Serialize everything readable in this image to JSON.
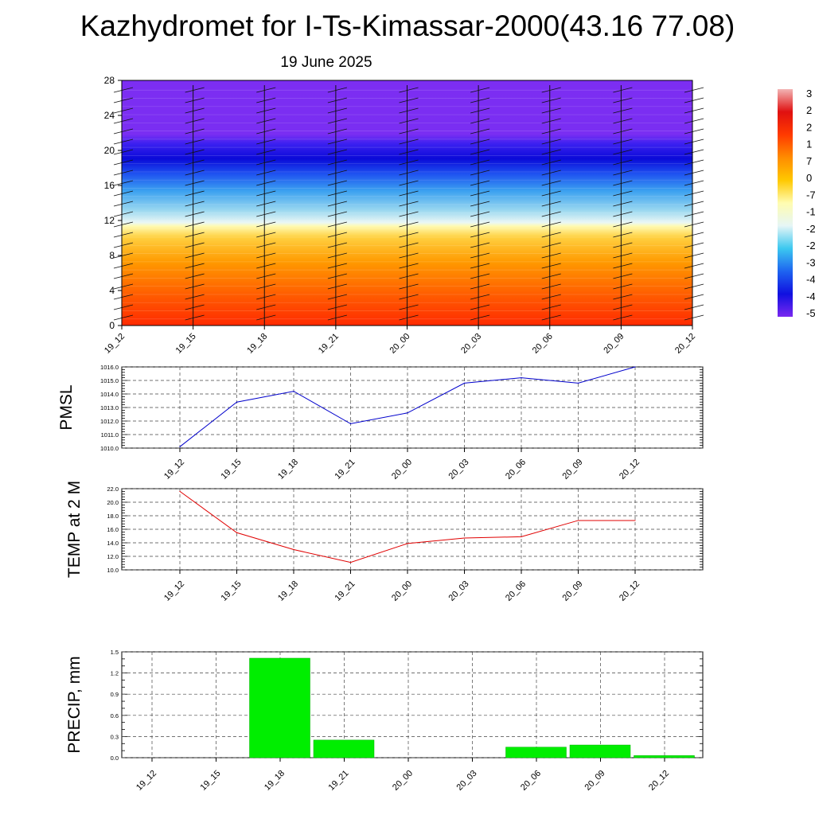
{
  "title": "Kazhydromet for I-Ts-Kimassar-2000(43.16 77.08)",
  "subtitle": "19 June 2025",
  "chart_data": [
    {
      "type": "heatmap",
      "name": "cross-section",
      "x_tick_labels": [
        "19_12",
        "19_15",
        "19_18",
        "19_21",
        "20_00",
        "20_03",
        "20_06",
        "20_09",
        "20_12"
      ],
      "y_ticks": [
        0,
        4,
        8,
        12,
        16,
        20,
        24,
        28
      ],
      "ylim": [
        0,
        28
      ],
      "colorbar_labels": [
        "3",
        "2",
        "2",
        "1",
        "7",
        "0",
        "-7",
        "-1",
        "-2",
        "-2",
        "-3",
        "-4",
        "-4",
        "-5"
      ],
      "color_stops": [
        "#f2b4b4",
        "#e01010",
        "#ff3a00",
        "#ff8c00",
        "#ffc800",
        "#fffcb0",
        "#e6f6f6",
        "#3cc8f0",
        "#1e64f0",
        "#1010e0",
        "#7a28f0"
      ],
      "wind_barbs": true
    },
    {
      "type": "line",
      "name": "pmsl",
      "ylabel": "PMSL",
      "categories": [
        "19_12",
        "19_15",
        "19_18",
        "19_21",
        "20_00",
        "20_03",
        "20_06",
        "20_09",
        "20_12"
      ],
      "values": [
        1010.1,
        1013.4,
        1014.2,
        1011.8,
        1012.6,
        1014.8,
        1015.2,
        1014.8,
        1016.0
      ],
      "y_ticks": [
        "1010.0",
        "1011.0",
        "1012.0",
        "1013.0",
        "1014.0",
        "1015.0",
        "1016.0"
      ],
      "ylim": [
        1010,
        1016
      ],
      "color": "#0000cc",
      "grid": true
    },
    {
      "type": "line",
      "name": "temp2m",
      "ylabel": "TEMP at 2 M",
      "categories": [
        "19_12",
        "19_15",
        "19_18",
        "19_21",
        "20_00",
        "20_03",
        "20_06",
        "20_09",
        "20_12"
      ],
      "values": [
        21.6,
        15.5,
        13.0,
        11.1,
        13.9,
        14.7,
        14.9,
        17.3,
        17.3
      ],
      "y_ticks": [
        "10.0",
        "12.0",
        "14.0",
        "16.0",
        "18.0",
        "20.0",
        "22.0"
      ],
      "ylim": [
        10,
        22
      ],
      "color": "#e00000",
      "grid": true
    },
    {
      "type": "bar",
      "name": "precip",
      "ylabel": "PRECIP, mm",
      "categories": [
        "19_12",
        "19_15",
        "19_18",
        "19_21",
        "20_00",
        "20_03",
        "20_06",
        "20_09",
        "20_12"
      ],
      "values": [
        0,
        1.41,
        0.25,
        0,
        0,
        0.15,
        0.18,
        0.03,
        0
      ],
      "y_ticks": [
        "0.0",
        "0.3",
        "0.6",
        "0.9",
        "1.2",
        "1.5"
      ],
      "ylim": [
        0,
        1.5
      ],
      "color": "#00ee00",
      "grid": true
    }
  ]
}
